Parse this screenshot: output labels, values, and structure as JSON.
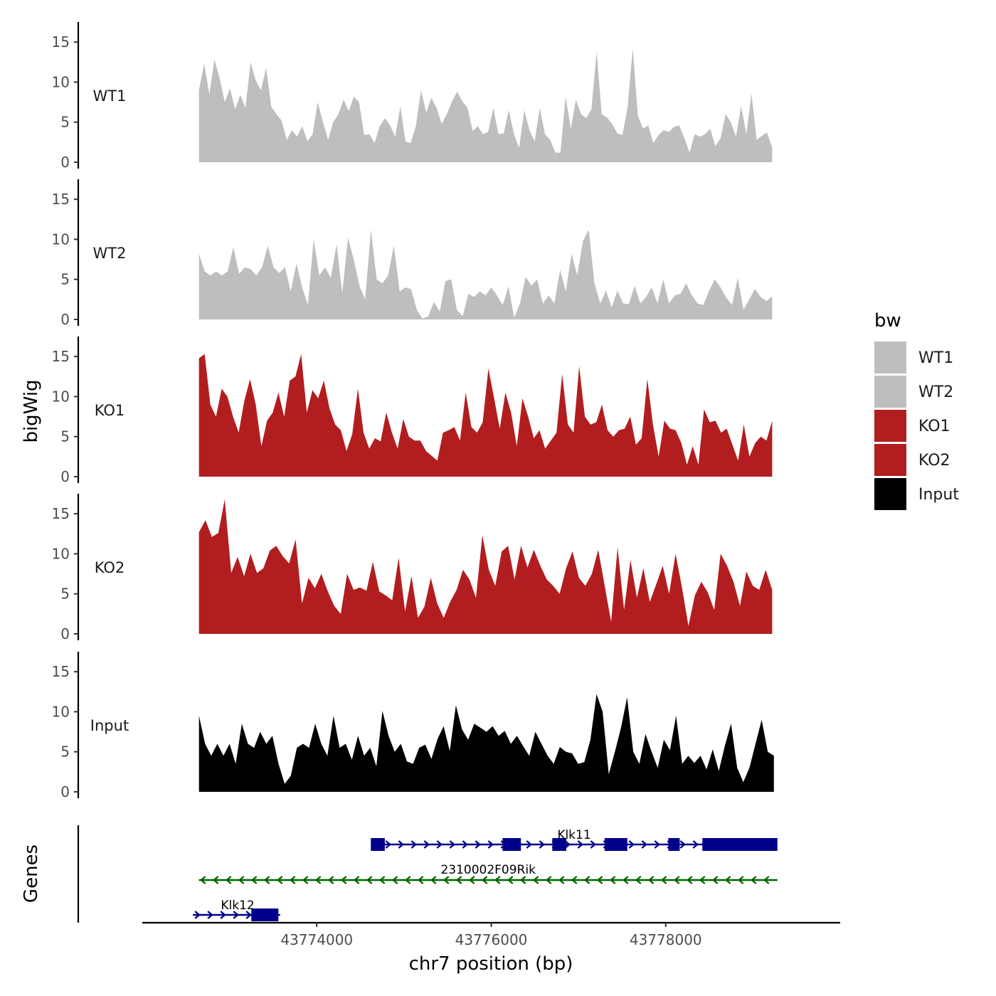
{
  "chart_data": {
    "type": "area",
    "title": "",
    "ylabel": "bigWig",
    "xlabel": "chr7 position (bp)",
    "genes_label": "Genes",
    "x_range": [
      43772000,
      43780000
    ],
    "x_ticks": [
      43774000,
      43776000,
      43778000
    ],
    "x_tick_labels": [
      "43774000",
      "43776000",
      "43778000"
    ],
    "y_range": [
      0,
      17.5
    ],
    "y_ticks": [
      0,
      5,
      10,
      15
    ],
    "y_tick_labels": [
      "0",
      "5",
      "10",
      "15"
    ],
    "legend": {
      "title": "bw",
      "position": "right",
      "entries": [
        {
          "label": "WT1",
          "color": "#bebebe"
        },
        {
          "label": "WT2",
          "color": "#bebebe"
        },
        {
          "label": "KO1",
          "color": "#b21e1f"
        },
        {
          "label": "KO2",
          "color": "#b21e1f"
        },
        {
          "label": "Input",
          "color": "#000000"
        }
      ]
    },
    "series": [
      {
        "name": "WT1",
        "color": "#bebebe",
        "x_start": 43772650,
        "x_end": 43779220,
        "values": [
          9,
          12.3,
          8.5,
          12.8,
          10.5,
          7.5,
          9.2,
          6.6,
          8.4,
          6.8,
          12.5,
          10.2,
          9,
          11.8,
          6.9,
          6,
          5.2,
          2.8,
          4,
          3.2,
          4.5,
          2.6,
          3.5,
          7.5,
          5,
          2.8,
          5,
          6,
          7.8,
          6.4,
          8.2,
          7.5,
          3.4,
          3.5,
          2.4,
          4.5,
          5.5,
          4.6,
          3.2,
          7,
          2.6,
          2.4,
          4.5,
          9,
          6.2,
          8,
          6.8,
          4.8,
          6,
          7.6,
          8.8,
          7.6,
          6.8,
          3.9,
          4.5,
          3.5,
          3.8,
          6.8,
          3.5,
          3.6,
          6.5,
          3.5,
          1.8,
          6.5,
          4,
          2.6,
          6.8,
          3.5,
          2.8,
          1.2,
          1.2,
          8.2,
          4.2,
          7.8,
          6,
          5.5,
          6.6,
          13.8,
          6,
          5.6,
          4.8,
          3.6,
          3.4,
          6.8,
          14.2,
          5.8,
          4.2,
          4.6,
          2.4,
          3.4,
          4,
          3.8,
          4.4,
          4.6,
          3,
          1.2,
          3.5,
          3.2,
          3.5,
          4.2,
          2,
          3,
          6,
          5,
          3.2,
          7,
          3.5,
          8.6,
          2.8,
          3.3,
          3.7,
          1.8
        ]
      },
      {
        "name": "WT2",
        "color": "#bebebe",
        "x_start": 43772650,
        "x_end": 43779220,
        "values": [
          8.2,
          6,
          5.5,
          6,
          5.5,
          6,
          9,
          5.7,
          6.5,
          6.3,
          5.5,
          6.5,
          9.2,
          6.5,
          5.8,
          6.5,
          3.5,
          7,
          4,
          1.8,
          10,
          5.5,
          6.5,
          5.2,
          9.4,
          3.3,
          10.2,
          7.5,
          4.2,
          2.5,
          11.2,
          5,
          4.5,
          5.5,
          9.2,
          3.5,
          4,
          3.8,
          1.2,
          0.1,
          0.4,
          2.2,
          1,
          4.8,
          5,
          1.2,
          0.4,
          3.2,
          2.8,
          3.5,
          3,
          4,
          3,
          1.8,
          4.1,
          0.2,
          2,
          5.3,
          4.2,
          5,
          2,
          3,
          2,
          6.2,
          3.5,
          8.2,
          5.5,
          9.8,
          11.2,
          4.5,
          2,
          3.6,
          1.5,
          3.6,
          2,
          1.9,
          4.2,
          2,
          2.8,
          4,
          2,
          5,
          2,
          3,
          3.2,
          4.5,
          3,
          2,
          1.8,
          3.6,
          5,
          4,
          2.7,
          1.8,
          5.2,
          1.2,
          2.5,
          3.8,
          2.8,
          2.3,
          2.9
        ]
      },
      {
        "name": "KO1",
        "color": "#b21e1f",
        "x_start": 43772650,
        "x_end": 43779220,
        "values": [
          14.8,
          15.3,
          9,
          7.5,
          11,
          10,
          7.5,
          5.5,
          9.5,
          12.2,
          9,
          3.8,
          7,
          8,
          10.5,
          7.5,
          12,
          12.5,
          15.3,
          8,
          10.8,
          9.8,
          12,
          8.5,
          6.5,
          5.8,
          3.2,
          5.3,
          11,
          5.5,
          3.5,
          4.8,
          4.4,
          8,
          5.5,
          3.5,
          7.2,
          5,
          4.5,
          4.5,
          3.2,
          2.6,
          2,
          5.5,
          5.8,
          6.2,
          4.5,
          10.5,
          6.2,
          5.5,
          6.8,
          13.5,
          9.8,
          6,
          10.5,
          8,
          3.8,
          9.8,
          7.5,
          4.8,
          5.8,
          3.5,
          4.5,
          5.5,
          12.8,
          6.5,
          5.5,
          13.8,
          7.5,
          6.5,
          6.8,
          9,
          5.8,
          5,
          5.8,
          6,
          7.5,
          4,
          4.8,
          12.2,
          6.5,
          2.5,
          7,
          6,
          5.8,
          4.2,
          1.5,
          3.8,
          1.5,
          8.4,
          6.8,
          7,
          5.5,
          6,
          4,
          2,
          6.5,
          2.5,
          4.2,
          5,
          4.5,
          7
        ]
      },
      {
        "name": "KO2",
        "color": "#b21e1f",
        "x_start": 43772650,
        "x_end": 43779220,
        "values": [
          12.7,
          14.2,
          12.1,
          12.6,
          16.8,
          7.6,
          9.6,
          7.2,
          10,
          7.6,
          8.2,
          10.4,
          11,
          9.7,
          8.8,
          11.8,
          3.8,
          7,
          5.7,
          7.5,
          5.3,
          3.5,
          2.5,
          7.5,
          5.5,
          5.8,
          5.4,
          9,
          5.3,
          4.8,
          4.2,
          9.5,
          2.8,
          7.2,
          2,
          3.4,
          7,
          3.8,
          2,
          4,
          5.5,
          8,
          6.8,
          4.5,
          12.3,
          8,
          6,
          10.3,
          11,
          6.8,
          11,
          8.3,
          10.5,
          8.5,
          6.8,
          6,
          5,
          8.2,
          10.3,
          7,
          6,
          7.5,
          10.5,
          6,
          1.5,
          10.8,
          3,
          9.2,
          4.5,
          8.2,
          4,
          6.2,
          8.5,
          5,
          10,
          5.8,
          1,
          4.8,
          6.5,
          5.2,
          3,
          10,
          8.5,
          6.5,
          3.5,
          7.8,
          6,
          5.5,
          8,
          5.5
        ]
      },
      {
        "name": "Input",
        "color": "#000000",
        "x_start": 43772650,
        "x_end": 43779240,
        "values": [
          9.5,
          6,
          4.5,
          6,
          4.5,
          6,
          3.5,
          8.5,
          6,
          5.5,
          7.5,
          6,
          7,
          3.5,
          1,
          2,
          5.5,
          6,
          5.5,
          8.5,
          6,
          4.5,
          9.5,
          5.5,
          6,
          4,
          7,
          4.5,
          5.5,
          3.2,
          10.1,
          7,
          5,
          6,
          3.8,
          3.5,
          5.5,
          5.9,
          4.1,
          6.6,
          8.2,
          5.1,
          10.8,
          7.8,
          6.5,
          8.5,
          8,
          7.5,
          8.2,
          7,
          7.6,
          6,
          7,
          5.7,
          4.5,
          7.5,
          6,
          4.5,
          3.5,
          5.6,
          5,
          4.8,
          3.5,
          3.7,
          6.5,
          12.2,
          10,
          2.2,
          5,
          8,
          11.8,
          5,
          3.5,
          7.2,
          5,
          3,
          6.5,
          5.2,
          9.5,
          3.5,
          4.5,
          3.6,
          4.5,
          2.8,
          5.3,
          2.6,
          5.8,
          8.5,
          3,
          1.2,
          3,
          6,
          9,
          5,
          4.5
        ]
      }
    ],
    "genes": [
      {
        "name": "Klk11",
        "strand": "+",
        "start": 43774620,
        "end": 43779280,
        "color": "#00008b",
        "exons": [
          [
            43774620,
            43774780
          ],
          [
            43776130,
            43776340
          ],
          [
            43776700,
            43776860
          ],
          [
            43777300,
            43777560
          ],
          [
            43778030,
            43778160
          ],
          [
            43778420,
            43779280
          ]
        ]
      },
      {
        "name": "2310002F09Rik",
        "strand": "-",
        "start": 43772650,
        "end": 43779280,
        "color": "#006400",
        "exons": []
      },
      {
        "name": "Klk12",
        "strand": "+",
        "start": 43772580,
        "end": 43773580,
        "color": "#00008b",
        "exons": [
          [
            43773250,
            43773560
          ]
        ]
      }
    ]
  }
}
